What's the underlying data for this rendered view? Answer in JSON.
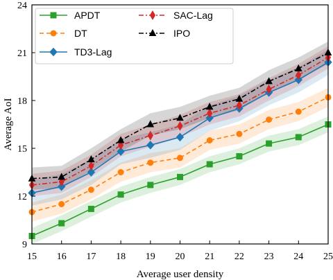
{
  "chart_data": {
    "type": "line",
    "xlabel": "Average user density",
    "ylabel": "Average AoI",
    "x": [
      15,
      16,
      17,
      18,
      19,
      20,
      21,
      22,
      23,
      24,
      25
    ],
    "xlim": [
      15,
      25
    ],
    "ylim": [
      9,
      24
    ],
    "xticks": [
      "15",
      "16",
      "17",
      "18",
      "19",
      "20",
      "21",
      "22",
      "23",
      "24",
      "25"
    ],
    "yticks": [
      "9",
      "12",
      "15",
      "18",
      "21",
      "24"
    ],
    "grid": false,
    "legend_position": "upper-left",
    "legend_columns": 2,
    "series": [
      {
        "name": "APDT",
        "color": "#2ca02c",
        "marker": "square",
        "linestyle": "solid",
        "values": [
          9.5,
          10.3,
          11.2,
          12.1,
          12.7,
          13.2,
          14.0,
          14.5,
          15.3,
          15.7,
          16.5
        ],
        "band": 0.5
      },
      {
        "name": "DT",
        "color": "#ff7f0e",
        "marker": "circle",
        "linestyle": "dashed",
        "values": [
          11.0,
          11.5,
          12.4,
          13.5,
          14.1,
          14.4,
          15.5,
          15.9,
          16.8,
          17.3,
          18.2
        ],
        "band": 0.6
      },
      {
        "name": "TD3-Lag",
        "color": "#1f77b4",
        "marker": "diamond",
        "linestyle": "solid",
        "values": [
          12.2,
          12.6,
          13.5,
          14.8,
          15.2,
          15.7,
          16.9,
          17.5,
          18.5,
          19.3,
          20.4
        ],
        "band": 0.8
      },
      {
        "name": "SAC-Lag",
        "color": "#d62728",
        "marker": "thin-diamond",
        "linestyle": "dashdot",
        "values": [
          12.7,
          12.9,
          13.9,
          15.2,
          15.8,
          16.4,
          17.2,
          17.7,
          18.7,
          19.6,
          20.7
        ],
        "band": 0.7
      },
      {
        "name": "IPO",
        "color": "#000000",
        "marker": "triangle",
        "linestyle": "dashdot",
        "values": [
          13.1,
          13.2,
          14.3,
          15.5,
          16.5,
          16.9,
          17.6,
          18.1,
          19.2,
          20.0,
          21.0
        ],
        "band": 0.7
      }
    ]
  }
}
